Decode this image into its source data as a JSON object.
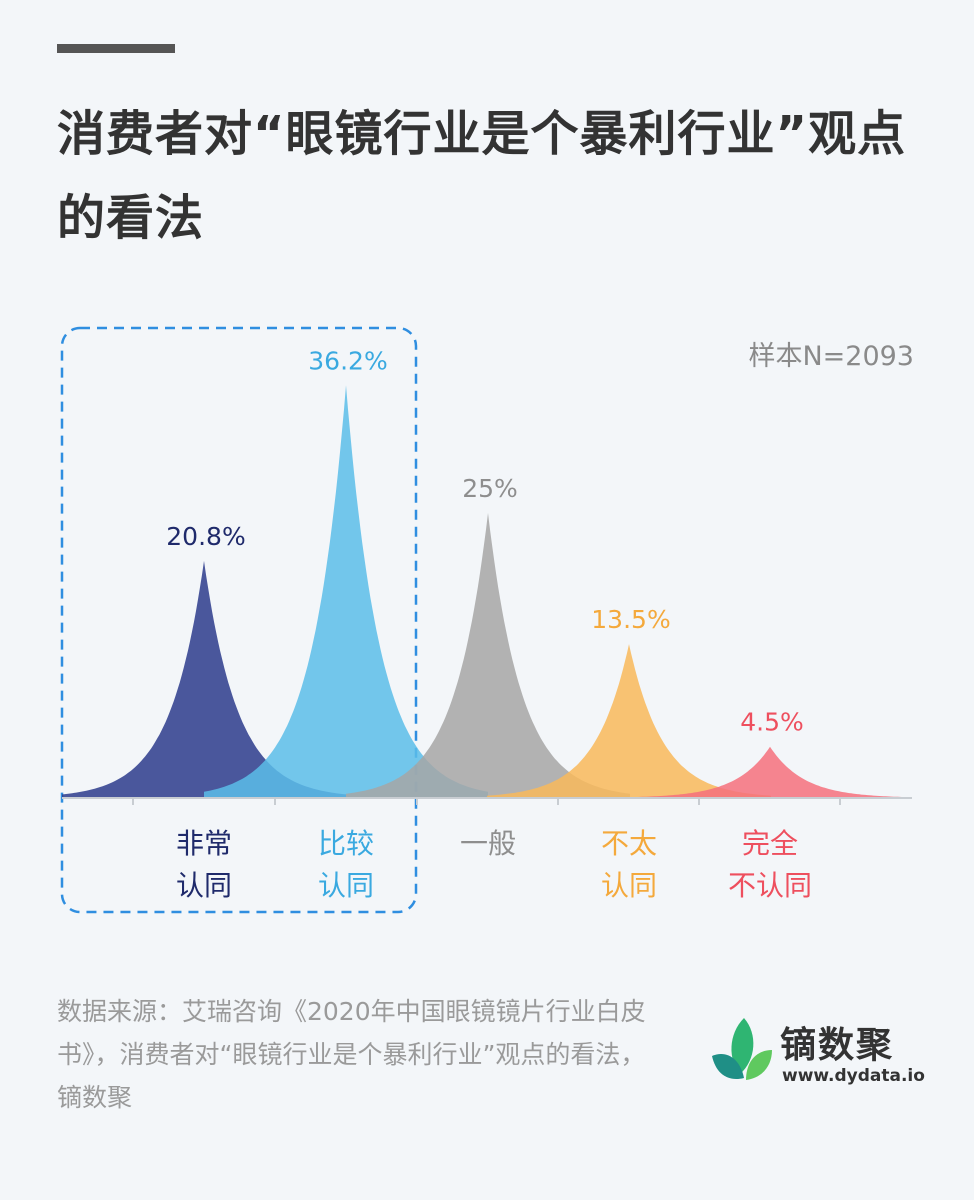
{
  "title": "消费者对“眼镜行业是个暴利行业”观点的看法",
  "sample": "样本N=2093",
  "source": "数据来源：艾瑞咨询《2020年中国眼镜镜片行业白皮书》，消费者对“眼镜行业是个暴利行业”观点的看法，镝数聚",
  "brand": {
    "name": "镝数聚",
    "url": "www.dydata.io"
  },
  "colors": {
    "very_agree": "#2b3b8c",
    "agree": "#5bbde9",
    "neutral": "#a6a6a6",
    "disagree": "#f8b95a",
    "strong_disagree": "#f4707d",
    "highlight_box": "#2f8ee0"
  },
  "chart_data": {
    "type": "area",
    "unit": "%",
    "ylim": [
      0,
      40
    ],
    "grid": false,
    "highlight": [
      "非常认同",
      "比较认同"
    ],
    "categories": [
      {
        "label_lines": [
          "非常",
          "认同"
        ],
        "value": 20.8,
        "value_label": "20.8%",
        "color": "#2b3b8c",
        "label_color": "#1f2a6b"
      },
      {
        "label_lines": [
          "比较",
          "认同"
        ],
        "value": 36.2,
        "value_label": "36.2%",
        "color": "#5bbde9",
        "label_color": "#3aa9e0"
      },
      {
        "label_lines": [
          "一般"
        ],
        "value": 25,
        "value_label": "25%",
        "color": "#a6a6a6",
        "label_color": "#8e8e8e"
      },
      {
        "label_lines": [
          "不太",
          "认同"
        ],
        "value": 13.5,
        "value_label": "13.5%",
        "color": "#f8b95a",
        "label_color": "#f4a93c"
      },
      {
        "label_lines": [
          "完全",
          "不认同"
        ],
        "value": 4.5,
        "value_label": "4.5%",
        "color": "#f4707d",
        "label_color": "#ee4f5e"
      }
    ]
  }
}
